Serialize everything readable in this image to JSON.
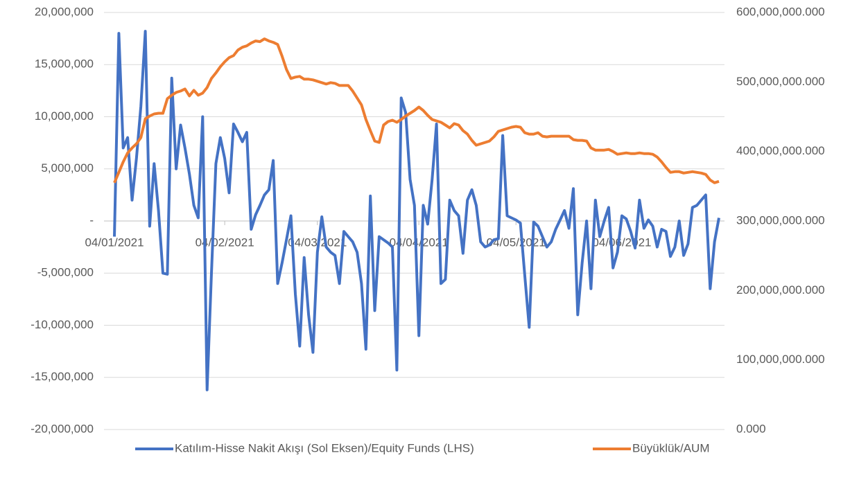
{
  "chart_data": {
    "type": "line",
    "categories": [
      "04/01/2021",
      null,
      null,
      null,
      null,
      null,
      null,
      null,
      null,
      null,
      null,
      null,
      null,
      null,
      null,
      null,
      null,
      null,
      null,
      null,
      null,
      null,
      null,
      null,
      null,
      "04/02/2021",
      null,
      null,
      null,
      null,
      null,
      null,
      null,
      null,
      null,
      null,
      null,
      null,
      null,
      null,
      null,
      null,
      null,
      null,
      null,
      null,
      "04/03/2021",
      null,
      null,
      null,
      null,
      null,
      null,
      null,
      null,
      null,
      null,
      null,
      null,
      null,
      null,
      null,
      null,
      null,
      null,
      null,
      null,
      null,
      null,
      "04/04/2021",
      null,
      null,
      null,
      null,
      null,
      null,
      null,
      null,
      null,
      null,
      null,
      null,
      null,
      null,
      null,
      null,
      null,
      null,
      null,
      null,
      null,
      "04/05/2021",
      null,
      null,
      null,
      null,
      null,
      null,
      null,
      null,
      null,
      null,
      null,
      null,
      null,
      null,
      null,
      null,
      null,
      null,
      null,
      null,
      null,
      null,
      null,
      "04/06/2021",
      null,
      null,
      null,
      null,
      null,
      null,
      null,
      null,
      null,
      null,
      null,
      null,
      null,
      null,
      null,
      null,
      null,
      null,
      null,
      null,
      null,
      null
    ],
    "series": [
      {
        "name": "Katılım-Hisse Nakit Akışı (Sol Eksen)/Equity Funds (LHS)",
        "color": "#4472c4",
        "values": [
          -1500000,
          18000000,
          7000000,
          8000000,
          2000000,
          6000000,
          11000000,
          18200000,
          -500000,
          5500000,
          1000000,
          -5000000,
          -5100000,
          13700000,
          5000000,
          9200000,
          7000000,
          4500000,
          1500000,
          300000,
          10000000,
          -16200000,
          -5000000,
          5500000,
          8000000,
          6000000,
          2700000,
          9300000,
          8500000,
          7600000,
          8500000,
          -800000,
          600000,
          1500000,
          2500000,
          3000000,
          5800000,
          -6000000,
          -4000000,
          -1800000,
          500000,
          -7000000,
          -12000000,
          -3500000,
          -9000000,
          -12600000,
          -3000000,
          400000,
          -2500000,
          -3000000,
          -3300000,
          -6000000,
          -1000000,
          -1500000,
          -2000000,
          -3000000,
          -6000000,
          -12300000,
          2400000,
          -8600000,
          -1500000,
          -1800000,
          -2100000,
          -2500000,
          -14300000,
          11800000,
          10400000,
          4000000,
          1500000,
          -11000000,
          1500000,
          -300000,
          4000000,
          9300000,
          -6000000,
          -5600000,
          2000000,
          1000000,
          500000,
          -3100000,
          2000000,
          3000000,
          1500000,
          -2000000,
          -2500000,
          -2300000,
          -1800000,
          -1700000,
          8200000,
          500000,
          300000,
          100000,
          -200000,
          -5200000,
          -10200000,
          -100000,
          -500000,
          -1500000,
          -2500000,
          -2000000,
          -800000,
          100000,
          1000000,
          -700000,
          3100000,
          -9000000,
          -4000000,
          0,
          -6500000,
          2000000,
          -1500000,
          0,
          1300000,
          -4500000,
          -3000000,
          500000,
          200000,
          -1000000,
          -2600000,
          2000000,
          -700000,
          100000,
          -500000,
          -2500000,
          -800000,
          -1000000,
          -3400000,
          -2500000,
          0,
          -3300000,
          -2200000,
          1300000,
          1500000,
          2000000,
          2500000,
          -6500000,
          -2000000,
          300000
        ]
      },
      {
        "name": "Büyüklük/AUM",
        "color": "#ed7d31",
        "axis": "y2",
        "values": [
          355000000000,
          370000000000,
          385000000000,
          398000000000,
          405000000000,
          411000000000,
          420000000000,
          447000000000,
          451000000000,
          454000000000,
          455000000000,
          455000000000,
          476000000000,
          481000000000,
          485000000000,
          487000000000,
          490000000000,
          480000000000,
          488000000000,
          481000000000,
          484000000000,
          492000000000,
          505000000000,
          513000000000,
          522000000000,
          529000000000,
          535000000000,
          538000000000,
          546000000000,
          550000000000,
          552000000000,
          556000000000,
          559000000000,
          558000000000,
          562000000000,
          559000000000,
          557000000000,
          554000000000,
          537000000000,
          518000000000,
          505000000000,
          507000000000,
          508000000000,
          504000000000,
          504000000000,
          503000000000,
          501000000000,
          499000000000,
          497000000000,
          499000000000,
          498000000000,
          495000000000,
          495000000000,
          495000000000,
          487000000000,
          477000000000,
          467000000000,
          446000000000,
          430000000000,
          415000000000,
          413000000000,
          438000000000,
          443000000000,
          445000000000,
          442000000000,
          446000000000,
          451000000000,
          455000000000,
          459000000000,
          464000000000,
          459000000000,
          452000000000,
          446000000000,
          444000000000,
          442000000000,
          438000000000,
          434000000000,
          440000000000,
          438000000000,
          430000000000,
          425000000000,
          416000000000,
          409000000000,
          411000000000,
          413000000000,
          415000000000,
          421000000000,
          429000000000,
          431000000000,
          433000000000,
          435000000000,
          436000000000,
          435000000000,
          427000000000,
          425000000000,
          425000000000,
          427000000000,
          422000000000,
          421000000000,
          422000000000,
          422000000000,
          422000000000,
          422000000000,
          422000000000,
          417000000000,
          416000000000,
          416000000000,
          415000000000,
          405000000000,
          402000000000,
          402000000000,
          402000000000,
          403000000000,
          400000000000,
          396000000000,
          397000000000,
          398000000000,
          397000000000,
          397000000000,
          398000000000,
          397000000000,
          397000000000,
          396000000000,
          392000000000,
          385000000000,
          377000000000,
          370000000000,
          371000000000,
          371000000000,
          369000000000,
          370000000000,
          371000000000,
          370000000000,
          369000000000,
          367000000000,
          359000000000,
          355000000000,
          357000000000
        ]
      }
    ],
    "ylim": [
      -20000000,
      20000000
    ],
    "yticks": [
      {
        "value": -20000000,
        "label": "-20,000,000"
      },
      {
        "value": -15000000,
        "label": "-15,000,000"
      },
      {
        "value": -10000000,
        "label": "-10,000,000"
      },
      {
        "value": -5000000,
        "label": "-5,000,000"
      },
      {
        "value": 0,
        "label": "-"
      },
      {
        "value": 5000000,
        "label": "5,000,000"
      },
      {
        "value": 10000000,
        "label": "10,000,000"
      },
      {
        "value": 15000000,
        "label": "15,000,000"
      },
      {
        "value": 20000000,
        "label": "20,000,000"
      }
    ],
    "y2lim": [
      0,
      600000000000
    ],
    "y2ticks": [
      {
        "value": 0,
        "label": "0.000"
      },
      {
        "value": 100000000000,
        "label": "100,000,000.000"
      },
      {
        "value": 200000000000,
        "label": "200,000,000.000"
      },
      {
        "value": 300000000000,
        "label": "300,000,000.000"
      },
      {
        "value": 400000000000,
        "label": "400,000,000.000"
      },
      {
        "value": 500000000000,
        "label": "500,000,000.000"
      },
      {
        "value": 600000000000,
        "label": "600,000,000.000"
      }
    ],
    "grid": true,
    "legend": "bottom"
  }
}
